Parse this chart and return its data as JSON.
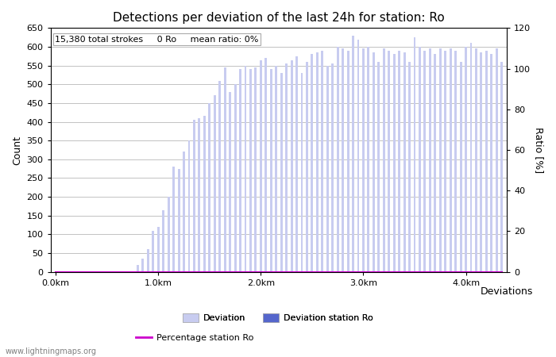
{
  "title": "Detections per deviation of the last 24h for station: Ro",
  "subtitle": "15,380 total strokes     0 Ro     mean ratio: 0%",
  "xlabel": "Deviations",
  "ylabel_left": "Count",
  "ylabel_right": "Ratio [%]",
  "x_tick_labels": [
    "0.0km",
    "1.0km",
    "2.0km",
    "3.0km",
    "4.0km"
  ],
  "x_tick_positions": [
    0,
    20,
    40,
    60,
    80
  ],
  "ylim_left": [
    0,
    650
  ],
  "ylim_right": [
    0,
    120
  ],
  "yticks_left": [
    0,
    50,
    100,
    150,
    200,
    250,
    300,
    350,
    400,
    450,
    500,
    550,
    600,
    650
  ],
  "yticks_right": [
    0,
    20,
    40,
    60,
    80,
    100,
    120
  ],
  "bar_color_light": "#c8ccf0",
  "bar_color_dark": "#5566cc",
  "line_color": "#cc00cc",
  "background_color": "#ffffff",
  "grid_color": "#aaaaaa",
  "watermark": "www.lightningmaps.org",
  "deviation_values": [
    0,
    0,
    0,
    0,
    0,
    0,
    0,
    0,
    0,
    0,
    0,
    0,
    0,
    0,
    0,
    0,
    18,
    35,
    60,
    110,
    120,
    165,
    200,
    280,
    275,
    320,
    350,
    405,
    410,
    415,
    450,
    470,
    510,
    545,
    480,
    500,
    540,
    550,
    540,
    545,
    565,
    570,
    540,
    550,
    530,
    555,
    565,
    575,
    530,
    560,
    580,
    585,
    590,
    550,
    555,
    600,
    595,
    590,
    630,
    620,
    595,
    600,
    585,
    560,
    595,
    590,
    580,
    590,
    585,
    560,
    625,
    600,
    590,
    595,
    580,
    595,
    590,
    595,
    590,
    560,
    600,
    610,
    595,
    585,
    590,
    580,
    595,
    560
  ],
  "station_values": [
    0,
    0,
    0,
    0,
    0,
    0,
    0,
    0,
    0,
    0,
    0,
    0,
    0,
    0,
    0,
    0,
    0,
    0,
    0,
    0,
    0,
    0,
    0,
    0,
    0,
    0,
    0,
    0,
    0,
    0,
    0,
    0,
    0,
    0,
    0,
    0,
    0,
    0,
    0,
    0,
    0,
    0,
    0,
    0,
    0,
    0,
    0,
    0,
    0,
    0,
    0,
    0,
    0,
    0,
    0,
    0,
    0,
    0,
    0,
    0,
    0,
    0,
    0,
    0,
    0,
    0,
    0,
    0,
    0,
    0,
    0,
    0,
    0,
    0,
    0,
    0,
    0,
    0,
    0,
    0,
    0,
    0,
    0,
    0,
    0,
    0,
    0,
    0
  ],
  "percentage_values": [
    0,
    0,
    0,
    0,
    0,
    0,
    0,
    0,
    0,
    0,
    0,
    0,
    0,
    0,
    0,
    0,
    0,
    0,
    0,
    0,
    0,
    0,
    0,
    0,
    0,
    0,
    0,
    0,
    0,
    0,
    0,
    0,
    0,
    0,
    0,
    0,
    0,
    0,
    0,
    0,
    0,
    0,
    0,
    0,
    0,
    0,
    0,
    0,
    0,
    0,
    0,
    0,
    0,
    0,
    0,
    0,
    0,
    0,
    0,
    0,
    0,
    0,
    0,
    0,
    0,
    0,
    0,
    0,
    0,
    0,
    0,
    0,
    0,
    0,
    0,
    0,
    0,
    0,
    0,
    0,
    0,
    0,
    0,
    0,
    0,
    0,
    0,
    0
  ]
}
